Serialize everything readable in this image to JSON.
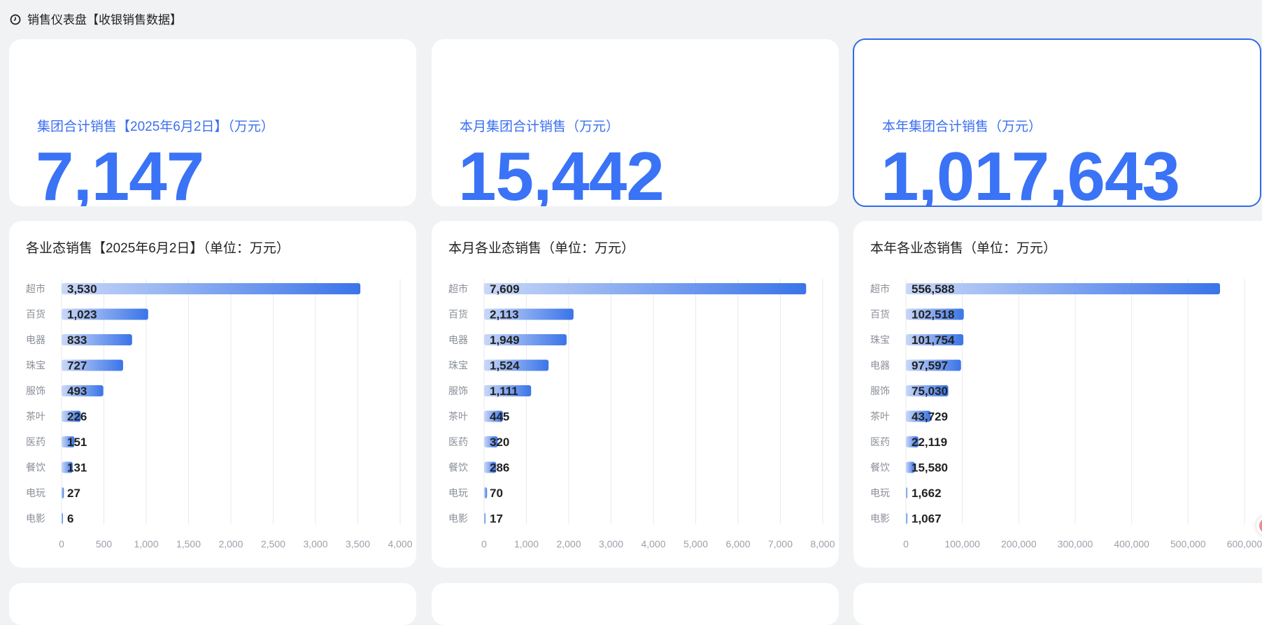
{
  "header": {
    "title": "销售仪表盘【收银销售数据】",
    "icon": "timer-icon"
  },
  "kpis": [
    {
      "label": "集团合计销售【2025年6月2日】（万元）",
      "value": "7,147"
    },
    {
      "label": "本月集团合计销售（万元）",
      "value": "15,442"
    },
    {
      "label": "本年集团合计销售（万元）",
      "value": "1,017,643",
      "selected": true
    }
  ],
  "colors": {
    "accent": "#3a73f5",
    "bar_start": "#c9d8f8",
    "bar_end": "#3a74e8"
  },
  "chart_data": [
    {
      "type": "bar",
      "orientation": "horizontal",
      "title": "各业态销售【2025年6月2日】（单位：万元）",
      "categories": [
        "超市",
        "百货",
        "电器",
        "珠宝",
        "服饰",
        "茶叶",
        "医药",
        "餐饮",
        "电玩",
        "电影"
      ],
      "values": [
        3530,
        1023,
        833,
        727,
        493,
        226,
        151,
        131,
        27,
        6
      ],
      "labels": [
        "3,530",
        "1,023",
        "833",
        "727",
        "493",
        "226",
        "151",
        "131",
        "27",
        "6"
      ],
      "xlim": [
        0,
        4000
      ],
      "ticks": [
        "0",
        "500",
        "1,000",
        "1,500",
        "2,000",
        "2,500",
        "3,000",
        "3,500",
        "4,000"
      ],
      "grid": true
    },
    {
      "type": "bar",
      "orientation": "horizontal",
      "title": "本月各业态销售（单位：万元）",
      "categories": [
        "超市",
        "百货",
        "电器",
        "珠宝",
        "服饰",
        "茶叶",
        "医药",
        "餐饮",
        "电玩",
        "电影"
      ],
      "values": [
        7609,
        2113,
        1949,
        1524,
        1111,
        445,
        320,
        286,
        70,
        17
      ],
      "labels": [
        "7,609",
        "2,113",
        "1,949",
        "1,524",
        "1,111",
        "445",
        "320",
        "286",
        "70",
        "17"
      ],
      "xlim": [
        0,
        8000
      ],
      "ticks": [
        "0",
        "1,000",
        "2,000",
        "3,000",
        "4,000",
        "5,000",
        "6,000",
        "7,000",
        "8,000"
      ],
      "grid": true
    },
    {
      "type": "bar",
      "orientation": "horizontal",
      "title": "本年各业态销售（单位：万元）",
      "categories": [
        "超市",
        "百货",
        "珠宝",
        "电器",
        "服饰",
        "茶叶",
        "医药",
        "餐饮",
        "电玩",
        "电影"
      ],
      "values": [
        556588,
        102518,
        101754,
        97597,
        75030,
        43729,
        22119,
        15580,
        1662,
        1067
      ],
      "labels": [
        "556,588",
        "102,518",
        "101,754",
        "97,597",
        "75,030",
        "43,729",
        "22,119",
        "15,580",
        "1,662",
        "1,067"
      ],
      "xlim": [
        0,
        600000
      ],
      "ticks": [
        "0",
        "100,000",
        "200,000",
        "300,000",
        "400,000",
        "500,000",
        "600,000"
      ],
      "grid": true
    }
  ]
}
